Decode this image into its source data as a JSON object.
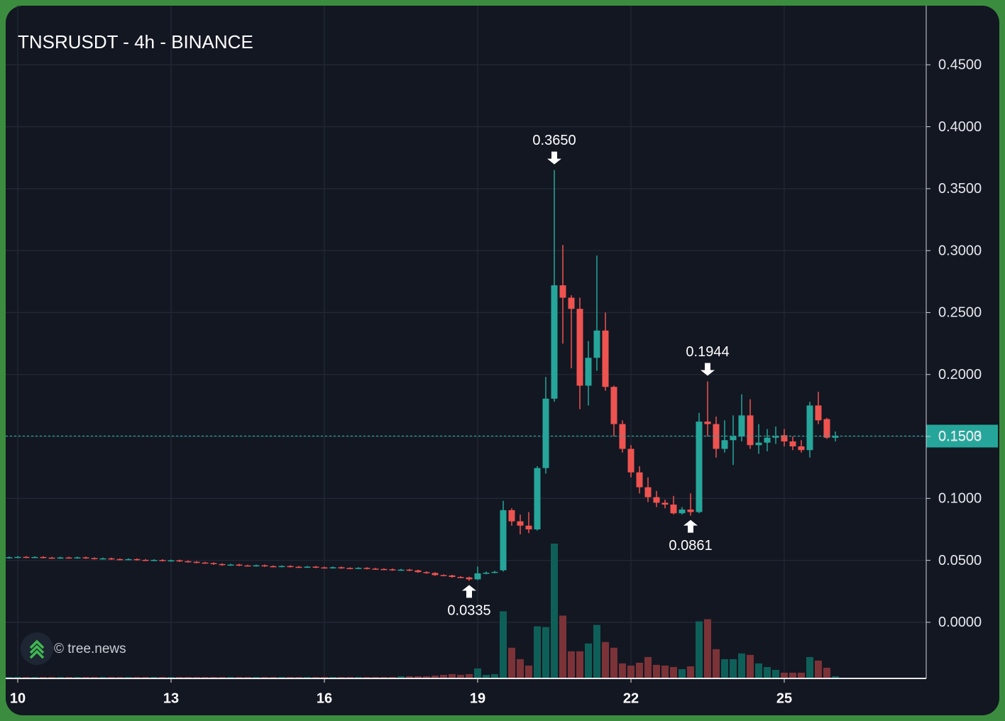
{
  "chart_data": {
    "type": "candlestick",
    "title": "TNSRUSDT - 4h - BINANCE",
    "watermark": "© tree.news",
    "up_color": "#26a69a",
    "down_color": "#ef5350",
    "volume_up_color": "#0f5f59",
    "volume_down_color": "#7b3338",
    "xlim": [
      9.764,
      27.778
    ],
    "xticks": [
      10,
      13,
      16,
      19,
      22,
      25
    ],
    "ylim": [
      -0.0453,
      0.4977
    ],
    "yticks": [
      {
        "value": 0,
        "label": "0.0000"
      },
      {
        "value": 0.05,
        "label": "0.0500"
      },
      {
        "value": 0.1,
        "label": "0.1000"
      },
      {
        "value": 0.15,
        "label": "0.1500"
      },
      {
        "value": 0.2,
        "label": "0.2000"
      },
      {
        "value": 0.25,
        "label": "0.2500"
      },
      {
        "value": 0.3,
        "label": "0.3000"
      },
      {
        "value": 0.35,
        "label": "0.3500"
      },
      {
        "value": 0.4,
        "label": "0.4000"
      },
      {
        "value": 0.45,
        "label": "0.4500"
      }
    ],
    "grid": true,
    "last_price": {
      "value": 0.1503,
      "label": "0.1503"
    },
    "annotations": [
      {
        "x": 20.5,
        "value": 0.365,
        "label": "0.3650",
        "direction": "down"
      },
      {
        "x": 23.5,
        "value": 0.1944,
        "label": "0.1944",
        "direction": "down"
      },
      {
        "x": 23.1667,
        "value": 0.0861,
        "label": "0.0861",
        "direction": "up"
      },
      {
        "x": 18.8333,
        "value": 0.0335,
        "label": "0.0335",
        "direction": "up"
      }
    ],
    "x": [
      9.8333,
      10,
      10.1667,
      10.3333,
      10.5,
      10.6667,
      10.8333,
      11,
      11.1667,
      11.3333,
      11.5,
      11.6667,
      11.8333,
      12,
      12.1667,
      12.3333,
      12.5,
      12.6667,
      12.8333,
      13,
      13.1667,
      13.3333,
      13.5,
      13.6667,
      13.8333,
      14,
      14.1667,
      14.3333,
      14.5,
      14.6667,
      14.8333,
      15,
      15.1667,
      15.3333,
      15.5,
      15.6667,
      15.8333,
      16,
      16.1667,
      16.3333,
      16.5,
      16.6667,
      16.8333,
      17,
      17.1667,
      17.3333,
      17.5,
      17.6667,
      17.8333,
      18,
      18.1667,
      18.3333,
      18.5,
      18.6667,
      18.8333,
      19,
      19.1667,
      19.3333,
      19.5,
      19.6667,
      19.8333,
      20,
      20.1667,
      20.3333,
      20.5,
      20.6667,
      20.8333,
      21,
      21.1667,
      21.3333,
      21.5,
      21.6667,
      21.8333,
      22,
      22.1667,
      22.3333,
      22.5,
      22.6667,
      22.8333,
      23,
      23.1667,
      23.3333,
      23.5,
      23.6667,
      23.8333,
      24,
      24.1667,
      24.3333,
      24.5,
      24.6667,
      24.8333,
      25,
      25.1667,
      25.3333,
      25.5,
      25.6667,
      25.8333,
      26
    ],
    "open": [
      0.052,
      0.0525,
      0.0528,
      0.0524,
      0.0527,
      0.0522,
      0.0519,
      0.0523,
      0.052,
      0.0524,
      0.0518,
      0.0513,
      0.0516,
      0.051,
      0.0507,
      0.051,
      0.0504,
      0.05,
      0.0503,
      0.0497,
      0.05,
      0.0493,
      0.0488,
      0.0482,
      0.0478,
      0.047,
      0.0462,
      0.0466,
      0.0459,
      0.0456,
      0.046,
      0.0453,
      0.045,
      0.0454,
      0.0448,
      0.0445,
      0.0449,
      0.0443,
      0.044,
      0.0444,
      0.0438,
      0.0436,
      0.0439,
      0.0433,
      0.043,
      0.0428,
      0.0422,
      0.0425,
      0.0419,
      0.0405,
      0.0398,
      0.0381,
      0.0378,
      0.0366,
      0.0362,
      0.0347,
      0.0395,
      0.04,
      0.042,
      0.0905,
      0.0815,
      0.078,
      0.075,
      0.1245,
      0.1805,
      0.272,
      0.262,
      0.253,
      0.191,
      0.2135,
      0.2355,
      0.19,
      0.16,
      0.14,
      0.121,
      0.109,
      0.101,
      0.0965,
      0.095,
      0.088,
      0.091,
      0.089,
      0.162,
      0.16,
      0.14,
      0.147,
      0.15,
      0.167,
      0.143,
      0.145,
      0.149,
      0.151,
      0.146,
      0.142,
      0.139,
      0.175,
      0.164,
      0.149
    ],
    "high": [
      0.0531,
      0.0534,
      0.0534,
      0.0533,
      0.0533,
      0.0528,
      0.0529,
      0.0529,
      0.053,
      0.053,
      0.0524,
      0.0522,
      0.0522,
      0.0516,
      0.0516,
      0.0516,
      0.051,
      0.0509,
      0.0509,
      0.0506,
      0.0506,
      0.0499,
      0.0494,
      0.0488,
      0.0484,
      0.0476,
      0.0472,
      0.0472,
      0.0465,
      0.0466,
      0.0466,
      0.0459,
      0.046,
      0.046,
      0.0454,
      0.0455,
      0.0455,
      0.0449,
      0.045,
      0.045,
      0.0444,
      0.0445,
      0.0445,
      0.0439,
      0.0436,
      0.0434,
      0.0431,
      0.0431,
      0.0425,
      0.0411,
      0.0404,
      0.0387,
      0.0384,
      0.0372,
      0.0368,
      0.045,
      0.041,
      0.0415,
      0.098,
      0.092,
      0.087,
      0.089,
      0.126,
      0.198,
      0.365,
      0.3045,
      0.264,
      0.262,
      0.227,
      0.296,
      0.25,
      0.191,
      0.163,
      0.143,
      0.126,
      0.117,
      0.106,
      0.099,
      0.102,
      0.093,
      0.104,
      0.169,
      0.1944,
      0.166,
      0.163,
      0.167,
      0.184,
      0.18,
      0.16,
      0.156,
      0.158,
      0.156,
      0.15,
      0.147,
      0.178,
      0.186,
      0.165,
      0.154
    ],
    "low": [
      0.0514,
      0.0519,
      0.0518,
      0.0518,
      0.0516,
      0.0513,
      0.0513,
      0.0514,
      0.0514,
      0.0512,
      0.0507,
      0.0507,
      0.0504,
      0.0501,
      0.0501,
      0.0498,
      0.0494,
      0.0494,
      0.0491,
      0.0491,
      0.0487,
      0.0482,
      0.0476,
      0.0472,
      0.0464,
      0.0456,
      0.0456,
      0.0453,
      0.045,
      0.045,
      0.0447,
      0.0444,
      0.0444,
      0.0442,
      0.0439,
      0.0439,
      0.0437,
      0.0434,
      0.0434,
      0.0432,
      0.043,
      0.043,
      0.0427,
      0.0424,
      0.0422,
      0.0416,
      0.0416,
      0.0413,
      0.0399,
      0.0392,
      0.0375,
      0.0372,
      0.036,
      0.0356,
      0.0335,
      0.034,
      0.0388,
      0.0396,
      0.041,
      0.078,
      0.071,
      0.072,
      0.074,
      0.12,
      0.178,
      0.225,
      0.205,
      0.172,
      0.175,
      0.203,
      0.187,
      0.15,
      0.137,
      0.117,
      0.104,
      0.097,
      0.093,
      0.092,
      0.087,
      0.087,
      0.0861,
      0.088,
      0.15,
      0.133,
      0.137,
      0.127,
      0.146,
      0.14,
      0.136,
      0.138,
      0.144,
      0.142,
      0.139,
      0.137,
      0.133,
      0.16,
      0.148,
      0.146
    ],
    "close": [
      0.0525,
      0.0528,
      0.0524,
      0.0527,
      0.0522,
      0.0519,
      0.0523,
      0.052,
      0.0524,
      0.0518,
      0.0513,
      0.0516,
      0.051,
      0.0507,
      0.051,
      0.0504,
      0.05,
      0.0503,
      0.0497,
      0.05,
      0.0493,
      0.0488,
      0.0482,
      0.0478,
      0.047,
      0.0462,
      0.0466,
      0.0459,
      0.0456,
      0.046,
      0.0453,
      0.045,
      0.0454,
      0.0448,
      0.0445,
      0.0449,
      0.0443,
      0.044,
      0.0444,
      0.0438,
      0.0436,
      0.0439,
      0.0433,
      0.043,
      0.0428,
      0.0422,
      0.0425,
      0.0419,
      0.0405,
      0.0398,
      0.0381,
      0.0378,
      0.0366,
      0.0362,
      0.0347,
      0.0395,
      0.04,
      0.0407,
      0.0905,
      0.0815,
      0.078,
      0.075,
      0.1245,
      0.1805,
      0.272,
      0.262,
      0.253,
      0.191,
      0.2135,
      0.2355,
      0.19,
      0.16,
      0.14,
      0.121,
      0.109,
      0.101,
      0.0965,
      0.095,
      0.088,
      0.091,
      0.089,
      0.162,
      0.16,
      0.14,
      0.147,
      0.15,
      0.167,
      0.143,
      0.145,
      0.149,
      0.15,
      0.146,
      0.142,
      0.139,
      0.175,
      0.163,
      0.149,
      0.1503
    ],
    "volume": [
      2,
      2,
      2,
      2,
      2,
      2,
      2,
      2,
      2,
      2,
      2,
      2,
      2,
      2,
      2,
      2,
      2,
      2,
      2,
      2,
      2,
      2,
      2,
      2,
      2,
      2,
      2,
      2,
      2,
      2,
      2,
      2,
      2,
      2,
      2,
      2,
      2,
      2,
      2,
      2,
      2,
      2,
      2,
      2,
      2,
      2,
      3,
      3,
      3,
      3,
      4,
      5,
      6,
      5,
      6,
      14,
      5,
      6,
      94,
      43,
      27,
      18,
      73,
      72,
      189,
      88,
      38,
      38,
      49,
      75,
      51,
      43,
      21,
      18,
      22,
      30,
      19,
      18,
      16,
      13,
      17,
      80,
      83,
      41,
      27,
      27,
      35,
      33,
      21,
      16,
      12,
      8,
      8,
      8,
      30,
      25,
      15,
      3
    ]
  }
}
